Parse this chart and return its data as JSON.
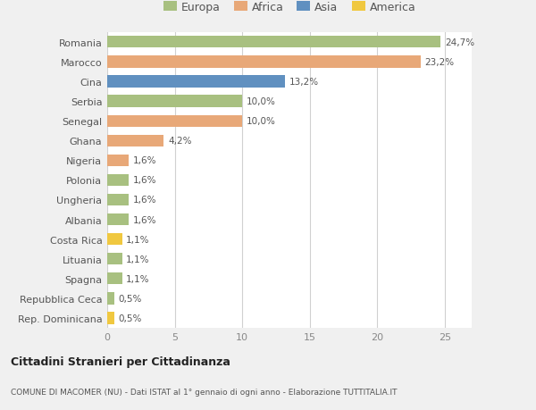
{
  "countries": [
    "Romania",
    "Marocco",
    "Cina",
    "Serbia",
    "Senegal",
    "Ghana",
    "Nigeria",
    "Polonia",
    "Ungheria",
    "Albania",
    "Costa Rica",
    "Lituania",
    "Spagna",
    "Repubblica Ceca",
    "Rep. Dominicana"
  ],
  "values": [
    24.7,
    23.2,
    13.2,
    10.0,
    10.0,
    4.2,
    1.6,
    1.6,
    1.6,
    1.6,
    1.1,
    1.1,
    1.1,
    0.5,
    0.5
  ],
  "labels": [
    "24,7%",
    "23,2%",
    "13,2%",
    "10,0%",
    "10,0%",
    "4,2%",
    "1,6%",
    "1,6%",
    "1,6%",
    "1,6%",
    "1,1%",
    "1,1%",
    "1,1%",
    "0,5%",
    "0,5%"
  ],
  "continents": [
    "Europa",
    "Africa",
    "Asia",
    "Europa",
    "Africa",
    "Africa",
    "Africa",
    "Europa",
    "Europa",
    "Europa",
    "America",
    "Europa",
    "Europa",
    "Europa",
    "America"
  ],
  "colors": {
    "Europa": "#a8c080",
    "Africa": "#e8a878",
    "Asia": "#6090c0",
    "America": "#f0c840"
  },
  "xlim": [
    0,
    27
  ],
  "xticks": [
    0,
    5,
    10,
    15,
    20,
    25
  ],
  "title": "Cittadini Stranieri per Cittadinanza",
  "subtitle": "COMUNE DI MACOMER (NU) - Dati ISTAT al 1° gennaio di ogni anno - Elaborazione TUTTITALIA.IT",
  "background_color": "#f0f0f0",
  "bar_background": "#ffffff",
  "grid_color": "#d0d0d0"
}
